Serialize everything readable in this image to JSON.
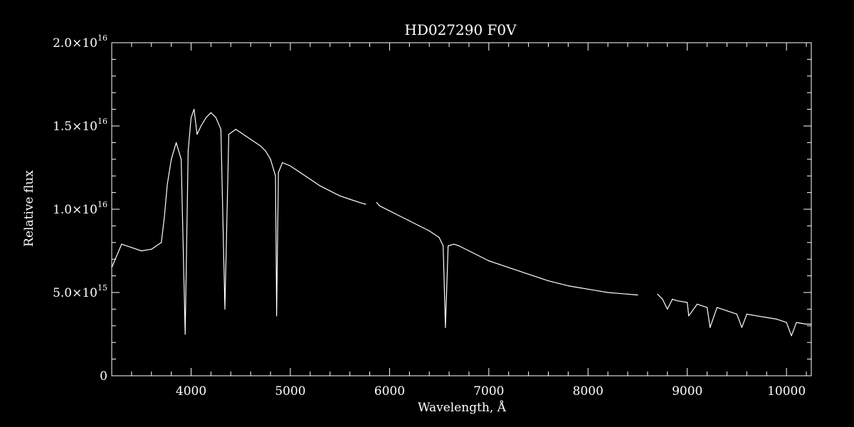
{
  "chart_data": {
    "type": "line",
    "title": "HD027290  F0V",
    "xlabel": "Wavelength, Å",
    "ylabel": "Relative flux",
    "xlim": [
      3200,
      10250
    ],
    "ylim": [
      0,
      2e+16
    ],
    "grid": false,
    "background_color": "#000000",
    "line_color": "#ffffff",
    "x_ticks": [
      {
        "value": 4000,
        "label": "4000"
      },
      {
        "value": 5000,
        "label": "5000"
      },
      {
        "value": 6000,
        "label": "6000"
      },
      {
        "value": 7000,
        "label": "7000"
      },
      {
        "value": 8000,
        "label": "8000"
      },
      {
        "value": 9000,
        "label": "9000"
      },
      {
        "value": 10000,
        "label": "10000"
      }
    ],
    "y_ticks": [
      {
        "value": 0,
        "mantissa": "0",
        "exponent": ""
      },
      {
        "value": 5000000000000000.0,
        "mantissa": "5.0×10",
        "exponent": "15"
      },
      {
        "value": 1e+16,
        "mantissa": "1.0×10",
        "exponent": "16"
      },
      {
        "value": 1.5e+16,
        "mantissa": "1.5×10",
        "exponent": "16"
      },
      {
        "value": 2e+16,
        "mantissa": "2.0×10",
        "exponent": "16"
      }
    ],
    "series": [
      {
        "segments": [
          {
            "x": [
              3200,
              3300,
              3400,
              3500,
              3600,
              3650,
              3700,
              3730,
              3760,
              3800,
              3850,
              3900,
              3940,
              3970,
              4000,
              4030,
              4060,
              4100,
              4150,
              4200,
              4250,
              4300,
              4340,
              4380,
              4450,
              4500,
              4600,
              4700,
              4750,
              4800,
              4850,
              4862,
              4880,
              4920,
              5000,
              5100,
              5200,
              5300,
              5400,
              5500,
              5600,
              5700,
              5760
            ],
            "y": [
              6500000000000000.0,
              7900000000000000.0,
              7700000000000000.0,
              7500000000000000.0,
              7600000000000000.0,
              7800000000000000.0,
              8000000000000000.0,
              9500000000000000.0,
              1.15e+16,
              1.3e+16,
              1.4e+16,
              1.3e+16,
              2500000000000000.0,
              1.35e+16,
              1.55e+16,
              1.6e+16,
              1.45e+16,
              1.5e+16,
              1.55e+16,
              1.58e+16,
              1.55e+16,
              1.48e+16,
              4000000000000000.0,
              1.45e+16,
              1.48e+16,
              1.46e+16,
              1.42e+16,
              1.38e+16,
              1.35e+16,
              1.3e+16,
              1.2e+16,
              3600000000000000.0,
              1.22e+16,
              1.28e+16,
              1.26e+16,
              1.22e+16,
              1.18e+16,
              1.14e+16,
              1.11e+16,
              1.08e+16,
              1.06e+16,
              1.04e+16,
              1.03e+16
            ]
          },
          {
            "x": [
              5870,
              5900,
              6000,
              6100,
              6200,
              6300,
              6400,
              6500,
              6540,
              6563,
              6590,
              6650,
              6700,
              6800,
              6900,
              7000,
              7100,
              7200,
              7300,
              7400,
              7500,
              7600,
              7700,
              7800,
              7900,
              8000,
              8100,
              8200,
              8300,
              8400,
              8500
            ],
            "y": [
              1.04e+16,
              1.02e+16,
              9900000000000000.0,
              9600000000000000.0,
              9300000000000000.0,
              9000000000000000.0,
              8700000000000000.0,
              8300000000000000.0,
              7800000000000000.0,
              2900000000000000.0,
              7800000000000000.0,
              7900000000000000.0,
              7800000000000000.0,
              7500000000000000.0,
              7200000000000000.0,
              6900000000000000.0,
              6700000000000000.0,
              6500000000000000.0,
              6300000000000000.0,
              6100000000000000.0,
              5900000000000000.0,
              5700000000000000.0,
              5550000000000000.0,
              5400000000000000.0,
              5300000000000000.0,
              5200000000000000.0,
              5100000000000000.0,
              5000000000000000.0,
              4950000000000000.0,
              4900000000000000.0,
              4850000000000000.0
            ]
          },
          {
            "x": [
              8700,
              8750,
              8800,
              8850,
              8900,
              9000,
              9015,
              9100,
              9200,
              9230,
              9300,
              9400,
              9500,
              9550,
              9600,
              9700,
              9800,
              9900,
              10000,
              10050,
              10100,
              10200,
              10250
            ],
            "y": [
              4900000000000000.0,
              4600000000000000.0,
              4000000000000000.0,
              4600000000000000.0,
              4500000000000000.0,
              4400000000000000.0,
              3600000000000000.0,
              4300000000000000.0,
              4100000000000000.0,
              2900000000000000.0,
              4100000000000000.0,
              3900000000000000.0,
              3700000000000000.0,
              2900000000000000.0,
              3700000000000000.0,
              3600000000000000.0,
              3500000000000000.0,
              3400000000000000.0,
              3200000000000000.0,
              2400000000000000.0,
              3200000000000000.0,
              3100000000000000.0,
              3100000000000000.0
            ]
          }
        ]
      }
    ]
  }
}
